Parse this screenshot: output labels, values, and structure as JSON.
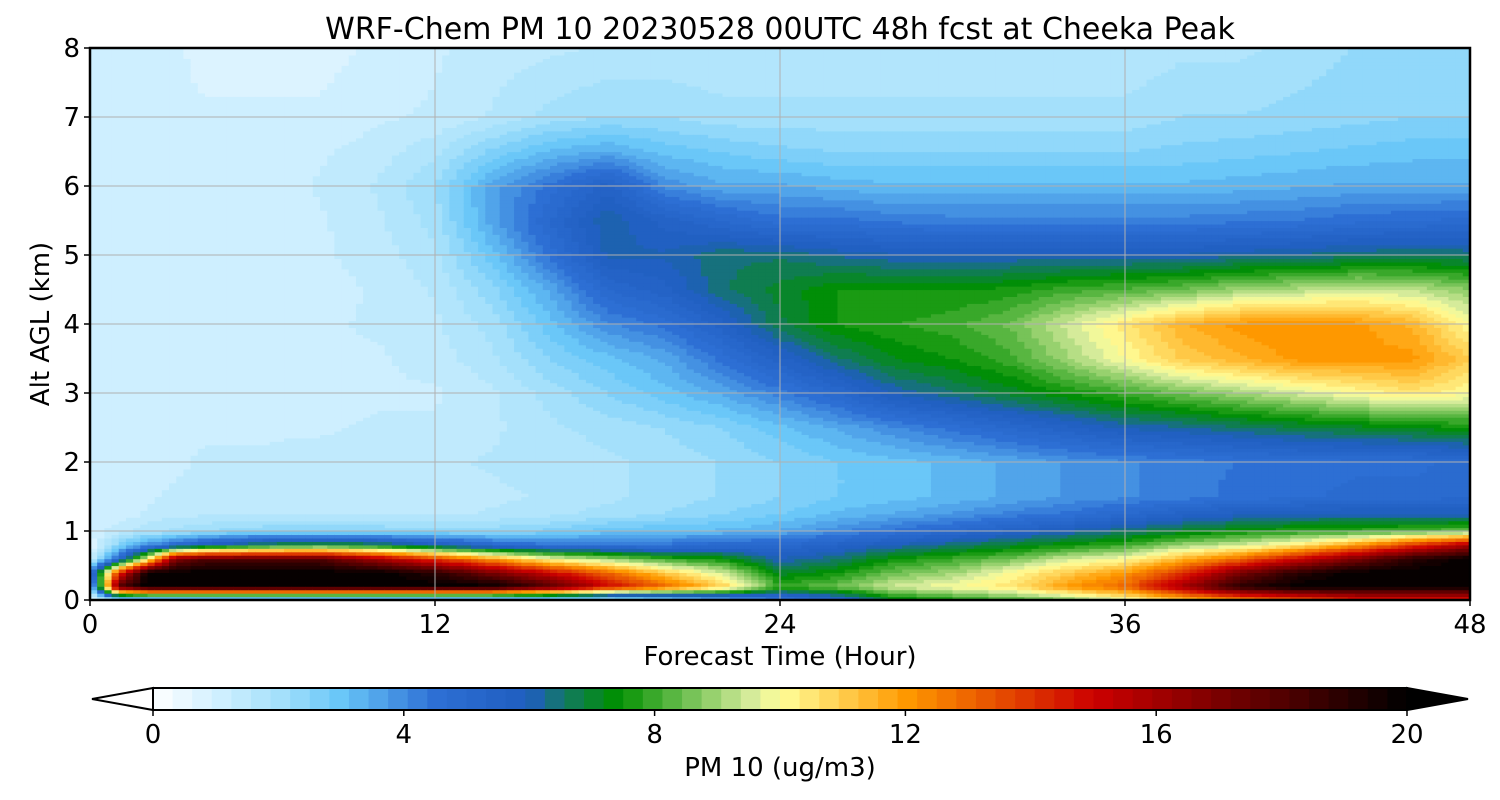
{
  "chart_data": {
    "type": "heatmap",
    "title": "WRF-Chem PM 10  20230528 00UTC 48h fcst at Cheeka Peak",
    "xlabel": "Forecast Time (Hour)",
    "ylabel": "Alt AGL (km)",
    "xlim": [
      0,
      48
    ],
    "ylim": [
      0,
      8
    ],
    "x_ticks": [
      0,
      12,
      24,
      36,
      48
    ],
    "y_ticks": [
      0,
      1,
      2,
      3,
      4,
      5,
      6,
      7,
      8
    ],
    "grid": true,
    "colorbar": {
      "label": "PM 10  (ug/m3)",
      "range": [
        0,
        20
      ],
      "ticks": [
        0,
        4,
        8,
        12,
        16,
        20
      ],
      "extend": "both",
      "orientation": "horizontal",
      "placement": "bottom",
      "levels": 64,
      "color_stops": [
        {
          "v": 0,
          "c": "#ffffff"
        },
        {
          "v": 1,
          "c": "#d2f0ff"
        },
        {
          "v": 2,
          "c": "#a6e1fb"
        },
        {
          "v": 3,
          "c": "#68c6f8"
        },
        {
          "v": 4.5,
          "c": "#2d6fd4"
        },
        {
          "v": 6,
          "c": "#1f5dbf"
        },
        {
          "v": 6.6,
          "c": "#127a5e"
        },
        {
          "v": 7.4,
          "c": "#009000"
        },
        {
          "v": 9.5,
          "c": "#d2ea9a"
        },
        {
          "v": 10,
          "c": "#ffff9a"
        },
        {
          "v": 12,
          "c": "#ff9a00"
        },
        {
          "v": 15,
          "c": "#cc0000"
        },
        {
          "v": 17,
          "c": "#7a0000"
        },
        {
          "v": 20,
          "c": "#000000"
        }
      ]
    },
    "grid_x_hours": [
      0,
      1,
      2,
      3,
      4,
      6,
      8,
      10,
      12,
      14,
      16,
      18,
      20,
      22,
      24,
      26,
      28,
      30,
      32,
      34,
      36,
      38,
      40,
      42,
      44,
      46,
      48
    ],
    "grid_y_km": [
      0,
      0.2,
      0.4,
      0.6,
      0.8,
      1.0,
      1.25,
      1.5,
      2.0,
      2.5,
      3.0,
      3.5,
      4.0,
      4.5,
      5.0,
      5.5,
      6.0,
      6.5,
      7.0,
      8.0
    ],
    "grid_values": [
      [
        0.5,
        2,
        4,
        1,
        0.6,
        1,
        1,
        1,
        1,
        1,
        1,
        1,
        1,
        1,
        1,
        1,
        1,
        1,
        1,
        1
      ],
      [
        1,
        18,
        14,
        5,
        2.5,
        1.5,
        1,
        1,
        1,
        1,
        1,
        1,
        1,
        1,
        1,
        1,
        1,
        1,
        1,
        1
      ],
      [
        1,
        20,
        20,
        10,
        4,
        1.8,
        1.3,
        1.2,
        1.2,
        1.2,
        1,
        1,
        1,
        1,
        1,
        1,
        1,
        1,
        1,
        1
      ],
      [
        1,
        20,
        20,
        17,
        5,
        2,
        1.5,
        1.3,
        1.2,
        1.2,
        1.1,
        1,
        1,
        1,
        1,
        1,
        1,
        1,
        1,
        1
      ],
      [
        1,
        20,
        20,
        18,
        6,
        2.2,
        1.5,
        1.3,
        1.3,
        1.2,
        1.2,
        1,
        1,
        1,
        1,
        1,
        1,
        1,
        1,
        0.8
      ],
      [
        1,
        20,
        20,
        18,
        7,
        2.5,
        1.5,
        1.3,
        1.3,
        1.2,
        1.1,
        1.1,
        1.1,
        1,
        1,
        1,
        1,
        1,
        1,
        0.8
      ],
      [
        1,
        20,
        20,
        18,
        7.5,
        2.5,
        1.5,
        1.3,
        1.4,
        1.2,
        1.1,
        1.2,
        1.2,
        1.1,
        1.2,
        1.2,
        1.3,
        1.2,
        1,
        0.8
      ],
      [
        1,
        20,
        20,
        16,
        7,
        2.5,
        1.5,
        1.3,
        1.4,
        1.3,
        1.2,
        1.2,
        1.3,
        1.3,
        1.4,
        1.5,
        1.6,
        1.4,
        1.2,
        1
      ],
      [
        1,
        20,
        19,
        14,
        6,
        2.4,
        1.5,
        1.4,
        1.5,
        1.3,
        1.2,
        1.4,
        1.5,
        1.6,
        1.8,
        2,
        2.2,
        1.8,
        1.3,
        1.2
      ],
      [
        1,
        20,
        17,
        12,
        5,
        2.4,
        1.6,
        1.5,
        1.6,
        1.5,
        1.5,
        1.8,
        2,
        2.4,
        3,
        3.6,
        3.6,
        2.6,
        1.6,
        1.4
      ],
      [
        1,
        18,
        15,
        10,
        4.5,
        2.6,
        1.8,
        1.6,
        1.7,
        1.8,
        2,
        2.5,
        3,
        3.5,
        4.5,
        5,
        4.5,
        3.2,
        2,
        1.5
      ],
      [
        1,
        15,
        13,
        9,
        4.5,
        3,
        2,
        1.8,
        1.8,
        2,
        2.5,
        3,
        4,
        5,
        6,
        6.2,
        5.5,
        3.5,
        2.2,
        1.6
      ],
      [
        2,
        13,
        11,
        8,
        4.5,
        3.2,
        2.2,
        2,
        2,
        2.2,
        3,
        3.5,
        4.5,
        5.5,
        6,
        5.5,
        4,
        3,
        2.2,
        1.6
      ],
      [
        3,
        11,
        9.5,
        7.5,
        5,
        3.2,
        2.5,
        2.2,
        2.2,
        2.5,
        3.5,
        4.5,
        5.5,
        6.5,
        6.5,
        5,
        3.5,
        2.8,
        2,
        1.6
      ],
      [
        4,
        8,
        7,
        6,
        5,
        3.5,
        2.8,
        2.5,
        2.5,
        3,
        4.2,
        5.5,
        6.8,
        7,
        6.5,
        4.5,
        3.5,
        2.6,
        2,
        1.6
      ],
      [
        5,
        8.5,
        7.5,
        6.5,
        5.5,
        4,
        3.2,
        2.8,
        2.8,
        3.5,
        5,
        6.5,
        7.5,
        7.5,
        6.2,
        4.5,
        3.3,
        2.5,
        2,
        1.6
      ],
      [
        7,
        9.5,
        8.5,
        7.5,
        6,
        4.5,
        3.5,
        3,
        3,
        4,
        6,
        7.2,
        7.8,
        7.5,
        6,
        4.3,
        3.2,
        2.5,
        2,
        1.6
      ],
      [
        7.5,
        10,
        9,
        8,
        6.5,
        5,
        3.8,
        3.2,
        3.2,
        4.5,
        6.5,
        7.5,
        8,
        7.5,
        6,
        4.2,
        3.2,
        2.5,
        2,
        1.6
      ],
      [
        8,
        10.5,
        10,
        8.5,
        7,
        5.5,
        4.2,
        3.5,
        3.5,
        5,
        7,
        8,
        8.5,
        7.6,
        6,
        4.2,
        3.2,
        2.5,
        2,
        1.6
      ],
      [
        8.5,
        12,
        11,
        9.5,
        7.5,
        6,
        4.5,
        3.8,
        3.8,
        5.5,
        7.5,
        9,
        9.5,
        8,
        6,
        4.2,
        3.2,
        2.5,
        2,
        1.6
      ],
      [
        9.5,
        13,
        12,
        10,
        8,
        6.5,
        5,
        4,
        4,
        6,
        8,
        10,
        10.5,
        8.2,
        6,
        4.2,
        3.2,
        2.5,
        2,
        1.6
      ],
      [
        11,
        16,
        14,
        11.5,
        9,
        7,
        5.5,
        4.2,
        4.2,
        6.2,
        8.5,
        11,
        11.5,
        8.5,
        6,
        4.2,
        3.2,
        2.6,
        2.2,
        1.8
      ],
      [
        12,
        19,
        17,
        13,
        9.5,
        7.5,
        5.8,
        4.5,
        4.4,
        6.5,
        9,
        11.5,
        12,
        9,
        6.2,
        4.3,
        3.3,
        2.7,
        2.2,
        1.8
      ],
      [
        13,
        20,
        19,
        15,
        10.5,
        7.8,
        6,
        4.6,
        4.5,
        6.8,
        9.5,
        12,
        12.2,
        9.2,
        6.3,
        4.4,
        3.4,
        2.8,
        2.3,
        2
      ],
      [
        14,
        20,
        20,
        17,
        12,
        8,
        6,
        4.8,
        4.6,
        7,
        10,
        12,
        12,
        9.5,
        6.5,
        4.6,
        3.5,
        2.9,
        2.4,
        2.2
      ],
      [
        14,
        20,
        20,
        19,
        14,
        8.2,
        6,
        4.8,
        4.6,
        7.2,
        10.5,
        12,
        11.5,
        9.3,
        6.6,
        4.7,
        3.5,
        3,
        2.5,
        2.2
      ],
      [
        14,
        20,
        20,
        20,
        16,
        8.5,
        6,
        5,
        4.8,
        7.5,
        10,
        11,
        10,
        8.8,
        6.5,
        4.8,
        3.5,
        3,
        2.5,
        2.2
      ]
    ]
  }
}
